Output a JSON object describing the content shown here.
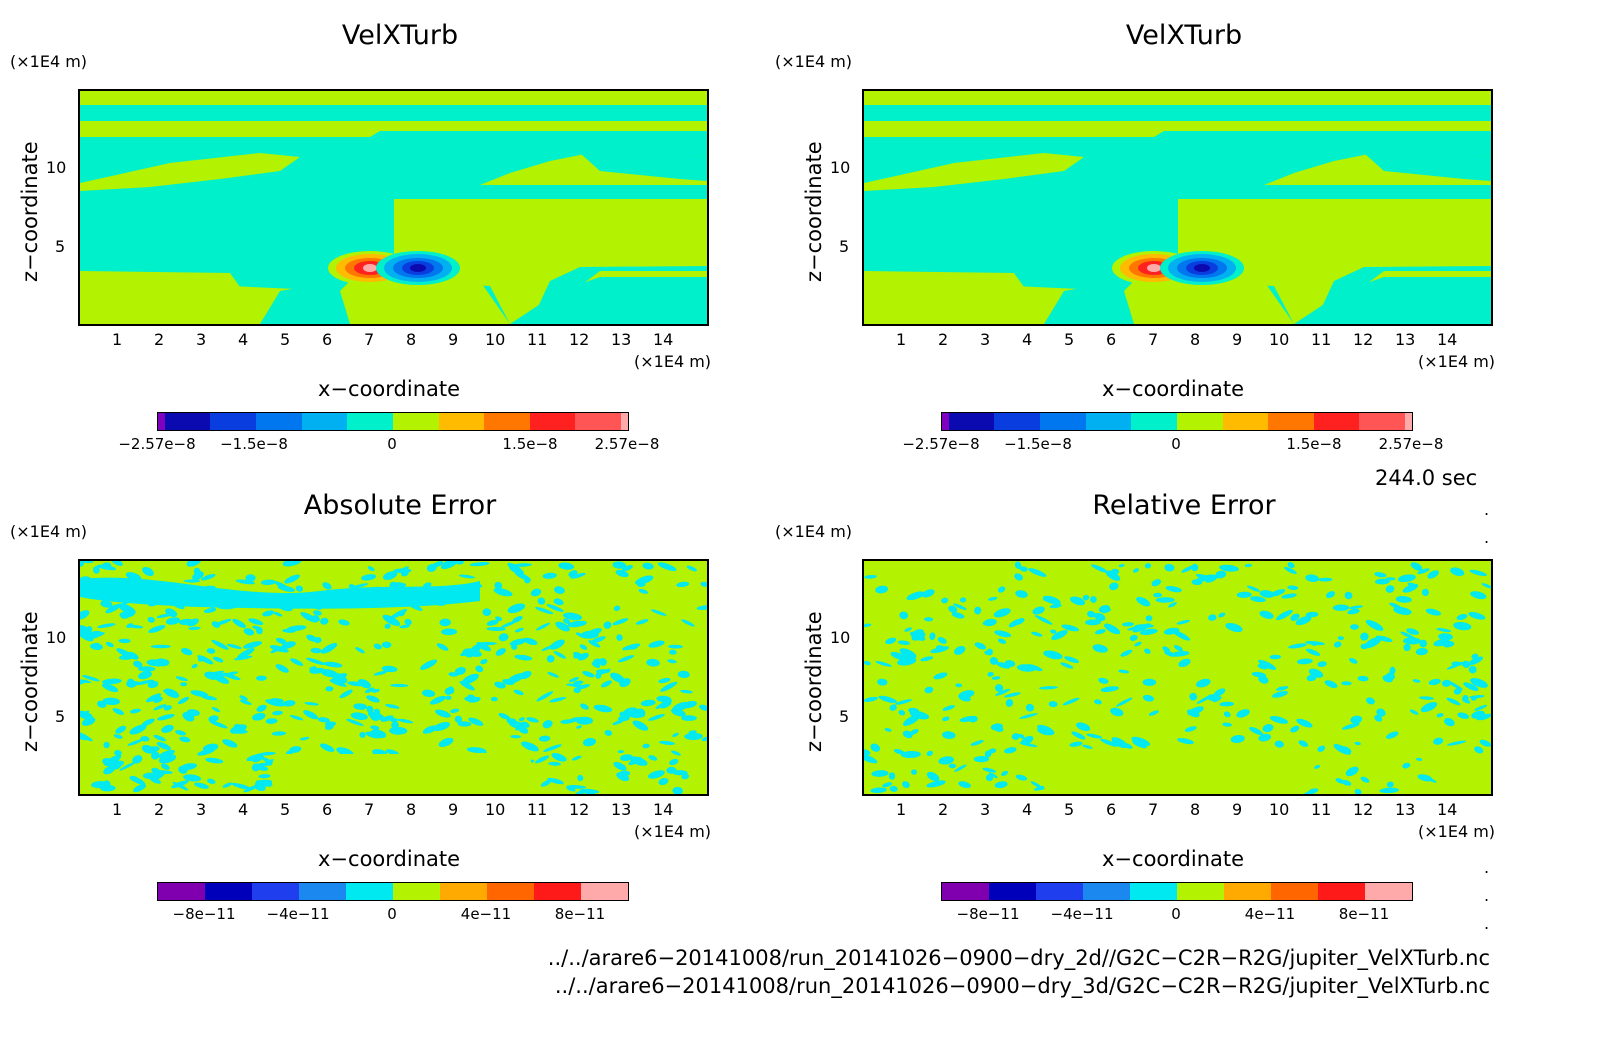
{
  "panels": [
    {
      "title": "VelXTurb",
      "unit": "(×1E4 m)",
      "xlabel": "x−coordinate",
      "ylabel": "z−coordinate",
      "cbar_labels": [
        "−2.57e−8",
        "−1.5e−8",
        "0",
        "1.5e−8",
        "2.57e−8"
      ],
      "cbar_colors": [
        "#7f00bf",
        "#0a0ab0",
        "#0a3ddf",
        "#0077ee",
        "#00b0f0",
        "#00f0cc",
        "#b3f200",
        "#ffbb00",
        "#ff7700",
        "#ff2020",
        "#ff5555",
        "#ffaaaa"
      ]
    },
    {
      "title": "VelXTurb",
      "unit": "(×1E4 m)",
      "xlabel": "x−coordinate",
      "ylabel": "z−coordinate",
      "cbar_labels": [
        "−2.57e−8",
        "−1.5e−8",
        "0",
        "1.5e−8",
        "2.57e−8"
      ],
      "cbar_colors": [
        "#7f00bf",
        "#0a0ab0",
        "#0a3ddf",
        "#0077ee",
        "#00b0f0",
        "#00f0cc",
        "#b3f200",
        "#ffbb00",
        "#ff7700",
        "#ff2020",
        "#ff5555",
        "#ffaaaa"
      ]
    },
    {
      "title": "Absolute Error",
      "unit": "(×1E4 m)",
      "xlabel": "x−coordinate",
      "ylabel": "z−coordinate",
      "cbar_labels": [
        "−8e−11",
        "−4e−11",
        "0",
        "4e−11",
        "8e−11"
      ],
      "cbar_colors": [
        "#8000b0",
        "#0000bb",
        "#1f3fee",
        "#1a88ee",
        "#00e8f0",
        "#b3f200",
        "#ffaa00",
        "#ff6600",
        "#ff1a1a",
        "#ffaaaa"
      ]
    },
    {
      "title": "Relative Error",
      "unit": "(×1E4 m)",
      "xlabel": "x−coordinate",
      "ylabel": "z−coordinate",
      "cbar_labels": [
        "−8e−11",
        "−4e−11",
        "0",
        "4e−11",
        "8e−11"
      ],
      "cbar_colors": [
        "#8000b0",
        "#0000bb",
        "#1f3fee",
        "#1a88ee",
        "#00e8f0",
        "#b3f200",
        "#ffaa00",
        "#ff6600",
        "#ff1a1a",
        "#ffaaaa"
      ]
    }
  ],
  "x_tick_labels": [
    "1",
    "2",
    "3",
    "4",
    "5",
    "6",
    "7",
    "8",
    "9",
    "10",
    "11",
    "12",
    "13",
    "14"
  ],
  "y_tick_labels": [
    "5",
    "10"
  ],
  "time_label": "244.0 sec",
  "file_paths": [
    "../../arare6−20141008/run_20141026−0900−dry_2d//G2C−C2R−R2G/jupiter_VelXTurb.nc",
    "../../arare6−20141008/run_20141026−0900−dry_3d/G2C−C2R−R2G/jupiter_VelXTurb.nc"
  ],
  "chart_data": [
    {
      "type": "heatmap",
      "title": "VelXTurb",
      "xlabel": "x−coordinate",
      "ylabel": "z−coordinate",
      "xlim": [
        0,
        15
      ],
      "ylim": [
        0,
        14.5
      ],
      "colorbar_ticks": [
        -2.57e-08,
        -1.5e-08,
        0,
        1.5e-08,
        2.57e-08
      ],
      "features": [
        {
          "x": 7,
          "z": 3.7,
          "sign": "positive",
          "peak": 2.57e-08
        },
        {
          "x": 8,
          "z": 3.7,
          "sign": "negative",
          "peak": -2.57e-08
        }
      ]
    },
    {
      "type": "heatmap",
      "title": "VelXTurb",
      "xlabel": "x−coordinate",
      "ylabel": "z−coordinate",
      "xlim": [
        0,
        15
      ],
      "ylim": [
        0,
        14.5
      ],
      "colorbar_ticks": [
        -2.57e-08,
        -1.5e-08,
        0,
        1.5e-08,
        2.57e-08
      ],
      "features": [
        {
          "x": 7,
          "z": 3.7,
          "sign": "positive",
          "peak": 2.57e-08
        },
        {
          "x": 8,
          "z": 3.7,
          "sign": "negative",
          "peak": -2.57e-08
        }
      ]
    },
    {
      "type": "heatmap",
      "title": "Absolute Error",
      "xlabel": "x−coordinate",
      "ylabel": "z−coordinate",
      "xlim": [
        0,
        15
      ],
      "ylim": [
        0,
        14.5
      ],
      "colorbar_ticks": [
        -8e-11,
        -4e-11,
        0,
        4e-11,
        8e-11
      ]
    },
    {
      "type": "heatmap",
      "title": "Relative Error",
      "xlabel": "x−coordinate",
      "ylabel": "z−coordinate",
      "xlim": [
        0,
        15
      ],
      "ylim": [
        0,
        14.5
      ],
      "colorbar_ticks": [
        -8e-11,
        -4e-11,
        0,
        4e-11,
        8e-11
      ]
    }
  ]
}
